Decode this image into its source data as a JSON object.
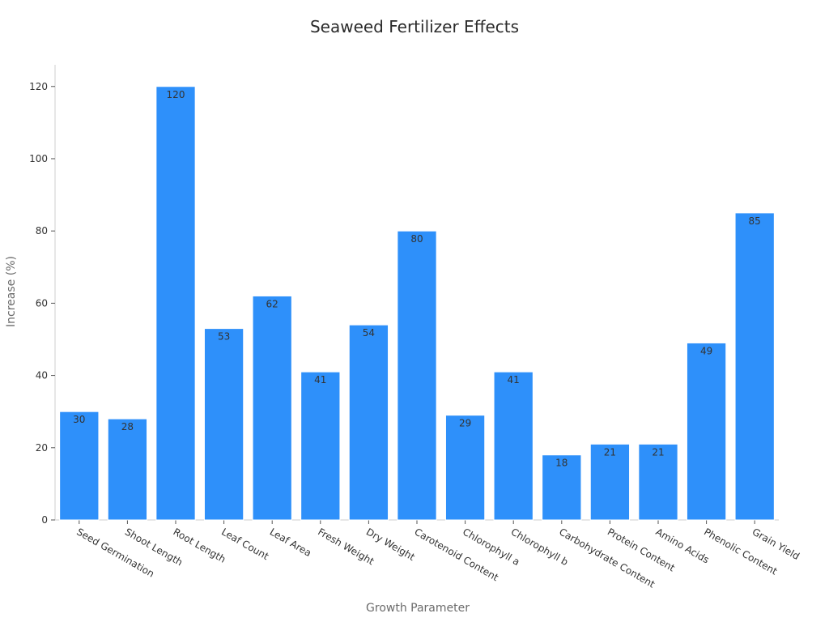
{
  "chart_data": {
    "type": "bar",
    "title": "Seaweed Fertilizer Effects",
    "xlabel": "Growth Parameter",
    "ylabel": "Increase (%)",
    "categories": [
      "Seed Germination",
      "Shoot Length",
      "Root Length",
      "Leaf Count",
      "Leaf Area",
      "Fresh Weight",
      "Dry Weight",
      "Carotenoid Content",
      "Chlorophyll a",
      "Chlorophyll b",
      "Carbohydrate Content",
      "Protein Content",
      "Amino Acids",
      "Phenolic Content",
      "Grain Yield"
    ],
    "values": [
      30,
      28,
      120,
      53,
      62,
      41,
      54,
      80,
      29,
      41,
      18,
      21,
      21,
      49,
      85
    ],
    "ylim": [
      0,
      126
    ],
    "yticks": [
      0,
      20,
      40,
      60,
      80,
      100,
      120
    ],
    "grid": false,
    "legend": "none",
    "bar_color": "#2E90FA",
    "bar_stroke": "#ffffff"
  }
}
